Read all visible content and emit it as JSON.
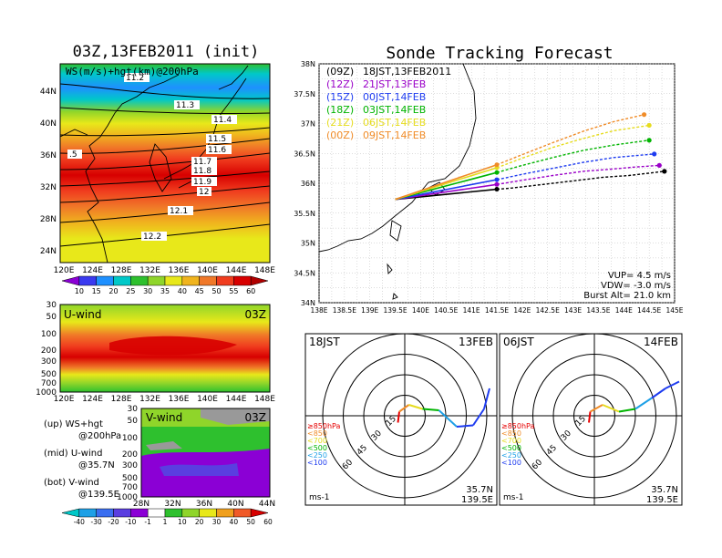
{
  "left": {
    "title": "03Z,13FEB2011 (init)",
    "upper_panel": {
      "label": "WS(m/s)+hgt(km)@200hPa",
      "lat_ticks": [
        "44N",
        "40N",
        "36N",
        "32N",
        "28N",
        "24N"
      ],
      "lon_ticks": [
        "120E",
        "124E",
        "128E",
        "132E",
        "136E",
        "140E",
        "144E",
        "148E"
      ],
      "contour_labels": [
        "11.2",
        "11.3",
        "11.4",
        "11.5",
        "11.6",
        "11.7",
        "11.8",
        "11.9",
        "12",
        "12.1",
        "12.2",
        ".5"
      ],
      "colorbar_ticks": [
        "10",
        "15",
        "20",
        "25",
        "30",
        "35",
        "40",
        "45",
        "50",
        "55",
        "60"
      ],
      "colorbar_colors": [
        "#8b00d5",
        "#3a3af0",
        "#1e90ff",
        "#00c8c8",
        "#2ec02e",
        "#8fd52a",
        "#e8e81a",
        "#f0b41e",
        "#f07828",
        "#f03c1e",
        "#d70000",
        "#b00000"
      ]
    },
    "mid_panel": {
      "label": "U-wind",
      "time": "03Z",
      "p_ticks": [
        "30",
        "50",
        "100",
        "200",
        "300",
        "500",
        "700",
        "1000"
      ],
      "lon_ticks": [
        "120E",
        "124E",
        "128E",
        "132E",
        "136E",
        "140E",
        "144E",
        "148E"
      ]
    },
    "low_panel": {
      "label": "V-wind",
      "time": "03Z",
      "p_ticks": [
        "30",
        "50",
        "100",
        "200",
        "300",
        "500",
        "700",
        "1000"
      ],
      "lat_ticks": [
        "28N",
        "32N",
        "36N",
        "40N",
        "44N"
      ]
    },
    "legend": [
      {
        "head": "(up) WS+hgt",
        "sub": "@200hPa"
      },
      {
        "head": "(mid) U-wind",
        "sub": "@35.7N"
      },
      {
        "head": "(bot) V-wind",
        "sub": "@139.5E"
      }
    ],
    "bottom_colorbar": {
      "ticks": [
        "-40",
        "-30",
        "-20",
        "-10",
        "-1",
        "1",
        "10",
        "20",
        "30",
        "40",
        "50",
        "60"
      ],
      "colors": [
        "#00c8c8",
        "#1ea0e6",
        "#3a6ef0",
        "#5a3ee0",
        "#8b00d5",
        "#ffffff",
        "#2ec02e",
        "#8fd52a",
        "#e8e81a",
        "#f0a01e",
        "#f05a28",
        "#d70000"
      ]
    }
  },
  "right": {
    "title": "Sonde Tracking Forecast",
    "lat_ticks": [
      "38N",
      "37.5N",
      "37N",
      "36.5N",
      "36N",
      "35.5N",
      "35N",
      "34.5N",
      "34N"
    ],
    "lon_ticks": [
      "138E",
      "138.5E",
      "139E",
      "139.5E",
      "140E",
      "140.5E",
      "141E",
      "141.5E",
      "142E",
      "142.5E",
      "143E",
      "143.5E",
      "144E",
      "144.5E",
      "145E"
    ],
    "launches": [
      {
        "run": "(09Z)",
        "label": "18JST,13FEB2011",
        "color": "#000000"
      },
      {
        "run": "(12Z)",
        "label": "21JST,13FEB",
        "color": "#9a00c8"
      },
      {
        "run": "(15Z)",
        "label": "00JST,14FEB",
        "color": "#1e3cf0"
      },
      {
        "run": "(18Z)",
        "label": "03JST,14FEB",
        "color": "#00b400"
      },
      {
        "run": "(21Z)",
        "label": "06JST,14FEB",
        "color": "#e6dc1e"
      },
      {
        "run": "(00Z)",
        "label": "09JST,14FEB",
        "color": "#f08c28"
      }
    ],
    "params": [
      "VUP= 4.5 m/s",
      "VDW= -3.0 m/s",
      "Burst Alt= 21.0 km"
    ]
  },
  "chart_data": {
    "type": "line",
    "title": "Sonde Tracking Forecast",
    "xlabel": "",
    "ylabel": "",
    "xlim": [
      138,
      145
    ],
    "ylim": [
      34,
      38
    ],
    "launch_point": [
      139.5,
      35.73
    ],
    "series": [
      {
        "name": "18JST,13FEB2011",
        "color": "#000000",
        "ascent_end": [
          141.5,
          35.9
        ],
        "descent": [
          [
            141.5,
            35.9
          ],
          [
            141.8,
            35.92
          ],
          [
            142.3,
            35.97
          ],
          [
            143.0,
            36.04
          ],
          [
            143.6,
            36.1
          ],
          [
            144.1,
            36.13
          ],
          [
            144.5,
            36.17
          ],
          [
            144.8,
            36.2
          ]
        ]
      },
      {
        "name": "21JST,13FEB",
        "color": "#9a00c8",
        "ascent_end": [
          141.5,
          35.98
        ],
        "descent": [
          [
            141.5,
            35.98
          ],
          [
            142.0,
            36.05
          ],
          [
            142.6,
            36.13
          ],
          [
            143.2,
            36.2
          ],
          [
            143.8,
            36.24
          ],
          [
            144.2,
            36.27
          ],
          [
            144.7,
            36.3
          ]
        ]
      },
      {
        "name": "00JST,14FEB",
        "color": "#1e3cf0",
        "ascent_end": [
          141.5,
          36.06
        ],
        "descent": [
          [
            141.5,
            36.06
          ],
          [
            142.0,
            36.15
          ],
          [
            142.6,
            36.25
          ],
          [
            143.2,
            36.35
          ],
          [
            143.8,
            36.43
          ],
          [
            144.6,
            36.49
          ]
        ]
      },
      {
        "name": "03JST,14FEB",
        "color": "#00b400",
        "ascent_end": [
          141.5,
          36.18
        ],
        "descent": [
          [
            141.5,
            36.18
          ],
          [
            142.0,
            36.3
          ],
          [
            142.6,
            36.43
          ],
          [
            143.2,
            36.55
          ],
          [
            143.8,
            36.64
          ],
          [
            144.5,
            36.72
          ]
        ]
      },
      {
        "name": "06JST,14FEB",
        "color": "#e6dc1e",
        "ascent_end": [
          141.5,
          36.26
        ],
        "descent": [
          [
            141.5,
            36.26
          ],
          [
            142.0,
            36.42
          ],
          [
            142.6,
            36.6
          ],
          [
            143.2,
            36.75
          ],
          [
            143.8,
            36.88
          ],
          [
            144.5,
            36.97
          ]
        ]
      },
      {
        "name": "09JST,14FEB",
        "color": "#f08c28",
        "ascent_end": [
          141.5,
          36.31
        ],
        "descent": [
          [
            141.5,
            36.31
          ],
          [
            142.0,
            36.48
          ],
          [
            142.6,
            36.68
          ],
          [
            143.2,
            36.87
          ],
          [
            143.8,
            37.03
          ],
          [
            144.4,
            37.15
          ]
        ]
      }
    ],
    "hodographs": [
      {
        "time": "18JST",
        "date": "13FEB",
        "lat": "35.7N",
        "lon": "139.5E",
        "units": "ms-1",
        "ring_labels": [
          "15",
          "30",
          "45",
          "60"
        ],
        "level_legend": [
          "≥850hPa",
          "<850",
          "<700",
          "<500",
          "<250",
          "<100"
        ],
        "level_colors": [
          "#e60000",
          "#f08c28",
          "#e6dc1e",
          "#00b400",
          "#1ea0e6",
          "#1e3cf0"
        ],
        "points": [
          [
            -5,
            -5
          ],
          [
            -4,
            3
          ],
          [
            3,
            8
          ],
          [
            13,
            5
          ],
          [
            25,
            4
          ],
          [
            38,
            -8
          ],
          [
            50,
            -7
          ],
          [
            58,
            5
          ],
          [
            62,
            20
          ]
        ]
      },
      {
        "time": "06JST",
        "date": "14FEB",
        "lat": "35.7N",
        "lon": "139.5E",
        "units": "ms-1",
        "ring_labels": [
          "15",
          "30",
          "45",
          "60"
        ],
        "level_legend": [
          "≥850hPa",
          "<850",
          "<700",
          "<500",
          "<250",
          "<100"
        ],
        "level_colors": [
          "#e60000",
          "#f08c28",
          "#e6dc1e",
          "#00b400",
          "#1ea0e6",
          "#1e3cf0"
        ],
        "points": [
          [
            -4,
            -5
          ],
          [
            -3,
            3
          ],
          [
            6,
            8
          ],
          [
            18,
            3
          ],
          [
            30,
            5
          ],
          [
            42,
            13
          ],
          [
            52,
            20
          ],
          [
            62,
            25
          ]
        ]
      }
    ]
  }
}
